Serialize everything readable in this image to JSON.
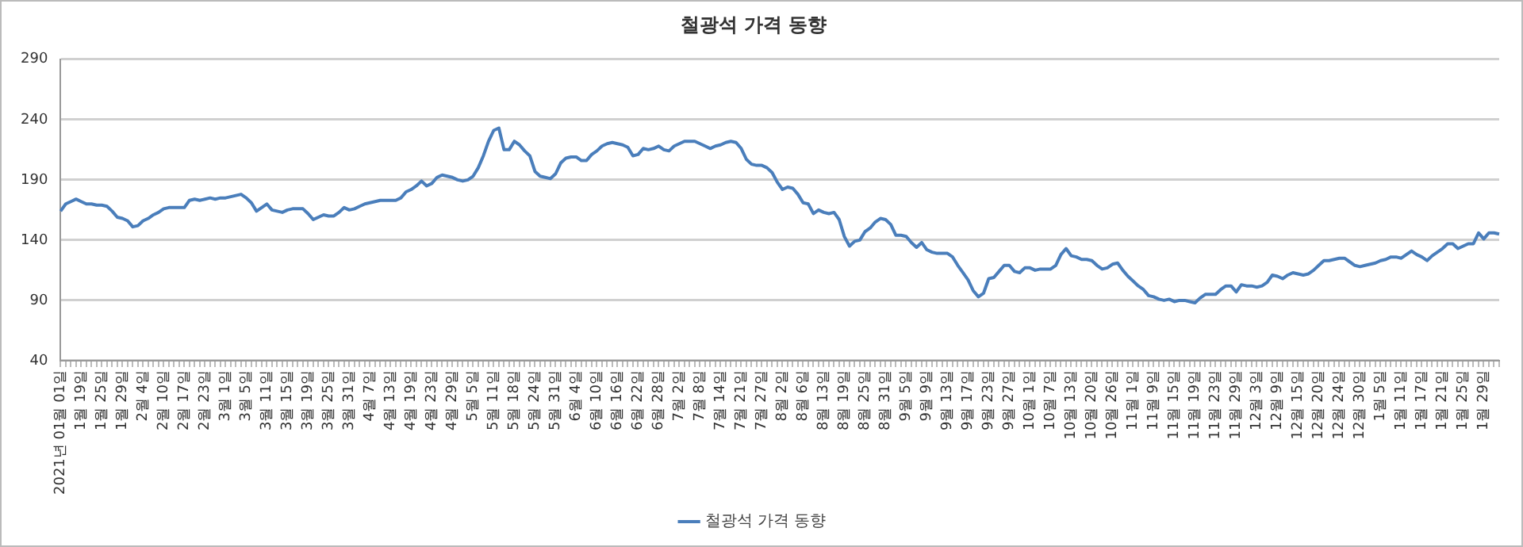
{
  "chart_data": {
    "type": "line",
    "title": "철광석 가격 동향",
    "categories": [
      "2021년 01월 01일",
      null,
      null,
      null,
      "1월 19일",
      null,
      null,
      null,
      "1월 25일",
      null,
      null,
      null,
      "1월 29일",
      null,
      null,
      null,
      "2월 4일",
      null,
      null,
      null,
      "2월 10일",
      null,
      null,
      null,
      "2월 17일",
      null,
      null,
      null,
      "2월 23일",
      null,
      null,
      null,
      "3월 1일",
      null,
      null,
      null,
      "3월 5일",
      null,
      null,
      null,
      "3월 11일",
      null,
      null,
      null,
      "3월 15일",
      null,
      null,
      null,
      "3월 19일",
      null,
      null,
      null,
      "3월 25일",
      null,
      null,
      null,
      "3월 31일",
      null,
      null,
      null,
      "4월 7일",
      null,
      null,
      null,
      "4월 13일",
      null,
      null,
      null,
      "4월 19일",
      null,
      null,
      null,
      "4월 23일",
      null,
      null,
      null,
      "4월 29일",
      null,
      null,
      null,
      "5월 5일",
      null,
      null,
      null,
      "5월 11일",
      null,
      null,
      null,
      "5월 18일",
      null,
      null,
      null,
      "5월 24일",
      null,
      null,
      null,
      "5월 31일",
      null,
      null,
      null,
      "6월 4일",
      null,
      null,
      null,
      "6월 10일",
      null,
      null,
      null,
      "6월 16일",
      null,
      null,
      null,
      "6월 22일",
      null,
      null,
      null,
      "6월 28일",
      null,
      null,
      null,
      "7월 2일",
      null,
      null,
      null,
      "7월 8일",
      null,
      null,
      null,
      "7월 14일",
      null,
      null,
      null,
      "7월 21일",
      null,
      null,
      null,
      "7월 27일",
      null,
      null,
      null,
      "8월 2일",
      null,
      null,
      null,
      "8월 6일",
      null,
      null,
      null,
      "8월 13일",
      null,
      null,
      null,
      "8월 19일",
      null,
      null,
      null,
      "8월 25일",
      null,
      null,
      null,
      "8월 31일",
      null,
      null,
      null,
      "9월 5일",
      null,
      null,
      null,
      "9월 9일",
      null,
      null,
      null,
      "9월 13일",
      null,
      null,
      null,
      "9월 17일",
      null,
      null,
      null,
      "9월 23일",
      null,
      null,
      null,
      "9월 27일",
      null,
      null,
      null,
      "10월 1일",
      null,
      null,
      null,
      "10월 7일",
      null,
      null,
      null,
      "10월 13일",
      null,
      null,
      null,
      "10월 20일",
      null,
      null,
      null,
      "10월 26일",
      null,
      null,
      null,
      "11월 1일",
      null,
      null,
      null,
      "11월 9일",
      null,
      null,
      null,
      "11월 15일",
      null,
      null,
      null,
      "11월 19일",
      null,
      null,
      null,
      "11월 23일",
      null,
      null,
      null,
      "11월 29일",
      null,
      null,
      null,
      "12월 3일",
      null,
      null,
      null,
      "12월 9일",
      null,
      null,
      null,
      "12월 15일",
      null,
      null,
      null,
      "12월 20일",
      null,
      null,
      null,
      "12월 24일",
      null,
      null,
      null,
      "12월 30일",
      null,
      null,
      null,
      "1월 5일",
      null,
      null,
      null,
      "1월 11일",
      null,
      null,
      null,
      "1월 17일",
      null,
      null,
      null,
      "1월 21일",
      null,
      null,
      null,
      "1월 25일",
      null,
      null,
      null,
      "1월 29일",
      null,
      null,
      null
    ],
    "series": [
      {
        "name": "철광석 가격 동향",
        "color": "#4a7ebb",
        "values": [
          164,
          170,
          172,
          174,
          172,
          170,
          170,
          169,
          169,
          168,
          164,
          159,
          158,
          156,
          151,
          152,
          156,
          158,
          161,
          163,
          166,
          167,
          167,
          167,
          167,
          173,
          174,
          173,
          174,
          175,
          174,
          175,
          175,
          176,
          177,
          178,
          175,
          171,
          164,
          167,
          170,
          165,
          164,
          163,
          165,
          166,
          166,
          166,
          162,
          157,
          159,
          161,
          160,
          160,
          163,
          167,
          165,
          166,
          168,
          170,
          171,
          172,
          173,
          173,
          173,
          173,
          175,
          180,
          182,
          185,
          189,
          185,
          187,
          192,
          194,
          193,
          192,
          190,
          189,
          190,
          193,
          200,
          210,
          222,
          231,
          233,
          215,
          215,
          222,
          219,
          214,
          210,
          197,
          193,
          192,
          191,
          195,
          204,
          208,
          209,
          209,
          206,
          206,
          211,
          214,
          218,
          220,
          221,
          220,
          219,
          217,
          210,
          211,
          216,
          215,
          216,
          218,
          215,
          214,
          218,
          220,
          222,
          222,
          222,
          220,
          218,
          216,
          218,
          219,
          221,
          222,
          221,
          216,
          207,
          203,
          202,
          202,
          200,
          196,
          188,
          182,
          184,
          183,
          178,
          171,
          170,
          162,
          165,
          163,
          162,
          163,
          157,
          143,
          135,
          139,
          140,
          147,
          150,
          155,
          158,
          157,
          153,
          144,
          144,
          143,
          138,
          134,
          138,
          132,
          130,
          129,
          129,
          129,
          126,
          119,
          113,
          107,
          98,
          93,
          96,
          108,
          109,
          114,
          119,
          119,
          114,
          113,
          117,
          117,
          115,
          116,
          116,
          116,
          119,
          128,
          133,
          127,
          126,
          124,
          124,
          123,
          119,
          116,
          117,
          120,
          121,
          115,
          110,
          106,
          102,
          99,
          94,
          93,
          91,
          90,
          91,
          89,
          90,
          90,
          89,
          88,
          92,
          95,
          95,
          95,
          99,
          102,
          102,
          97,
          103,
          102,
          102,
          101,
          102,
          105,
          111,
          110,
          108,
          111,
          113,
          112,
          111,
          112,
          115,
          119,
          123,
          123,
          124,
          125,
          125,
          122,
          119,
          118,
          119,
          120,
          121,
          123,
          124,
          126,
          126,
          125,
          128,
          131,
          128,
          126,
          123,
          127,
          130,
          133,
          137,
          137,
          133,
          135,
          137,
          137,
          146,
          141,
          146,
          146,
          145
        ]
      }
    ],
    "ylim": [
      40,
      290
    ],
    "yticks": [
      40,
      90,
      140,
      190,
      240,
      290
    ],
    "grid": "y",
    "legend": "bottom"
  }
}
